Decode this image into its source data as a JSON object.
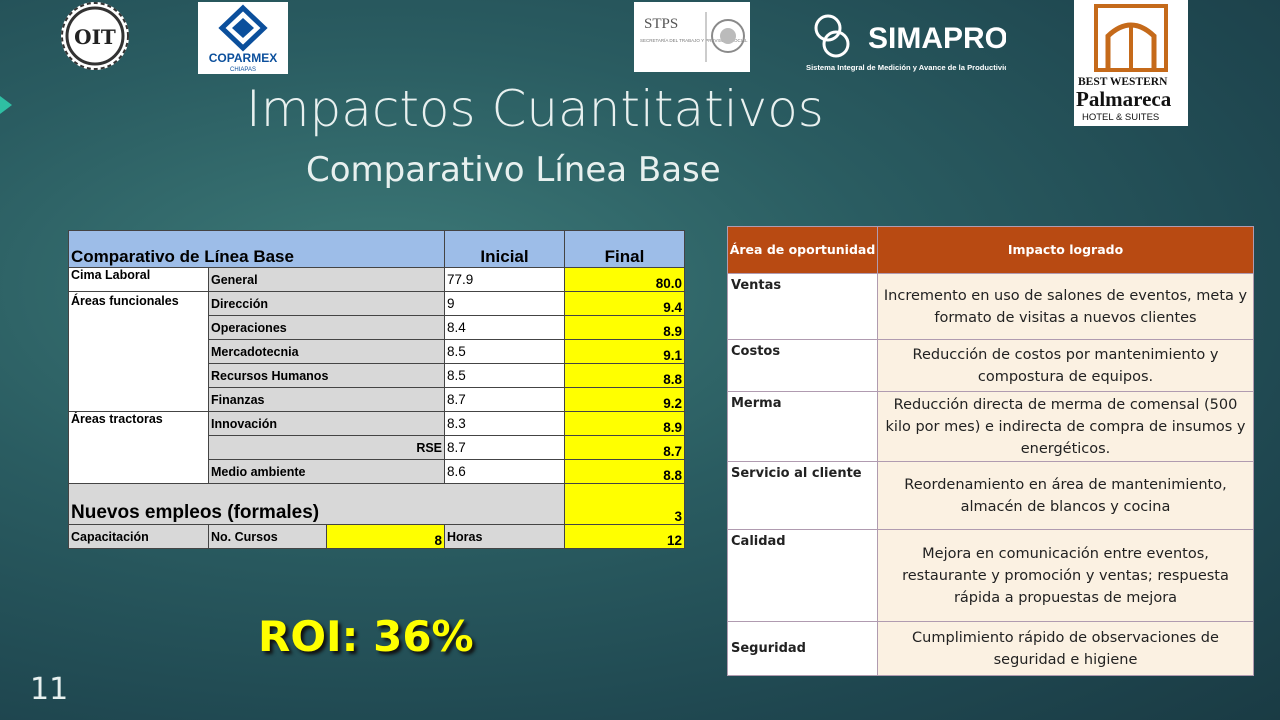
{
  "logos": {
    "oit": "OIT",
    "coparmex": "COPARMEX",
    "coparmex_sub": "CHIAPAS",
    "stps": "STPS",
    "stps_sub": "SECRETARÍA DEL TRABAJO Y PREVISIÓN SOCIAL",
    "simapro": "SIMAPRO",
    "simapro_sub": "Sistema Integral de Medición y Avance de la Productividad",
    "bw_line1": "BEST WESTERN",
    "bw_line2": "Palmareca",
    "bw_line3": "HOTEL & SUITES"
  },
  "title": "Impactos Cuantitativos",
  "subtitle": "Comparativo Línea Base",
  "left_table": {
    "header": {
      "label": "Comparativo de Línea Base",
      "inicial": "Inicial",
      "final": "Final"
    },
    "rows": [
      {
        "group": "Cima Laboral",
        "sub": "General",
        "inicial": "77.9",
        "final": "80.0"
      },
      {
        "group": "Áreas funcionales",
        "sub": "Dirección",
        "inicial": "9",
        "final": "9.4"
      },
      {
        "sub": "Operaciones",
        "inicial": "8.4",
        "final": "8.9"
      },
      {
        "sub": "Mercadotecnia",
        "inicial": "8.5",
        "final": "9.1"
      },
      {
        "sub": "Recursos Humanos",
        "inicial": "8.5",
        "final": "8.8"
      },
      {
        "sub": "Finanzas",
        "inicial": "8.7",
        "final": "9.2"
      },
      {
        "group": "Áreas tractoras",
        "sub": "Innovación",
        "inicial": "8.3",
        "final": "8.9"
      },
      {
        "sub": "RSE",
        "inicial": "8.7",
        "final": "8.7"
      },
      {
        "sub": "Medio ambiente",
        "inicial": "8.6",
        "final": "8.8"
      }
    ],
    "empleos": {
      "label": "Nuevos empleos (formales)",
      "final": "3"
    },
    "capacitacion": {
      "label": "Capacitación",
      "cursos_label": "No. Cursos",
      "cursos": "8",
      "horas_label": "Horas",
      "horas": "12"
    }
  },
  "right_table": {
    "header": {
      "area": "Área de oportunidad",
      "impacto": "Impacto logrado"
    },
    "rows": [
      {
        "area": "Ventas",
        "impacto": "Incremento en uso de salones de eventos, meta y formato de visitas a nuevos clientes"
      },
      {
        "area": "Costos",
        "impacto": "Reducción de costos por mantenimiento y compostura de equipos."
      },
      {
        "area": "Merma",
        "impacto": "Reducción directa de merma de comensal (500 kilo por mes) e indirecta de compra de insumos y energéticos."
      },
      {
        "area": "Servicio al cliente",
        "impacto": "Reordenamiento en área de mantenimiento, almacén de blancos y cocina"
      },
      {
        "area": "Calidad",
        "impacto": "Mejora en comunicación entre eventos, restaurante y promoción y ventas; respuesta rápida a propuestas de mejora"
      },
      {
        "area": "Seguridad",
        "impacto": "Cumplimiento rápido de observaciones de seguridad e higiene"
      }
    ]
  },
  "roi": "ROI:  36%",
  "page_number": "11",
  "colors": {
    "accent": "#2fbfa3",
    "header_orange": "#b84a12",
    "highlight": "#ffff00",
    "header_blue": "#9dbde8"
  }
}
